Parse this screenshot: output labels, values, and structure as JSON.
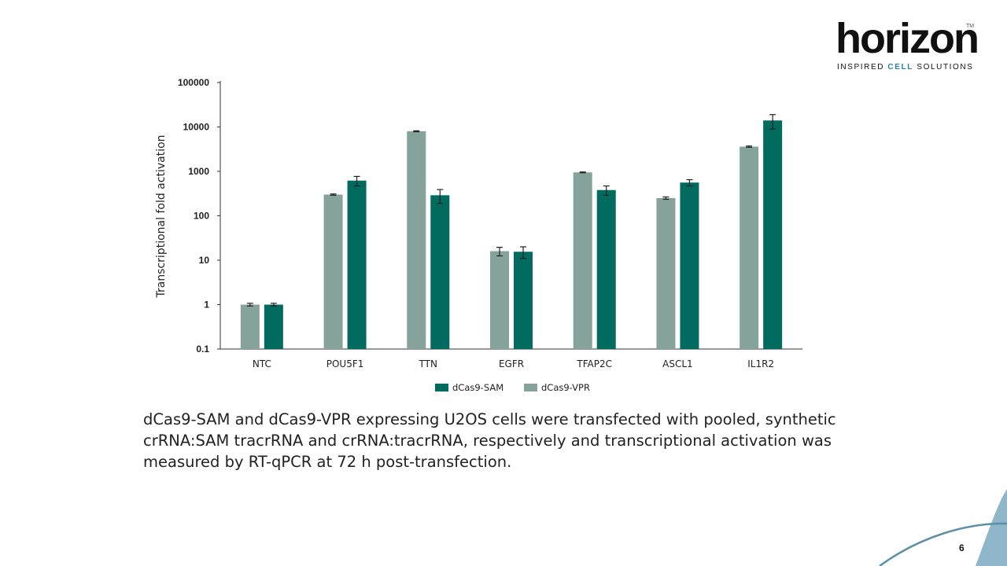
{
  "logo": {
    "word": "horizon",
    "trademark": "TM",
    "tagline_pre": "INSPIRED ",
    "tagline_accent": "CELL",
    "tagline_post": " SOLUTIONS"
  },
  "caption": "dCas9-SAM  and dCas9-VPR expressing U2OS cells were transfected with pooled, synthetic crRNA:SAM tracrRNA and crRNA:tracrRNA, respectively and transcriptional activation was measured by RT-qPCR at 72 h post-transfection.",
  "page_number": "6",
  "colors": {
    "sam": "#006b5e",
    "vpr": "#85a39b",
    "accent": "#2d7fa8"
  },
  "chart_data": {
    "type": "bar",
    "ylabel": "Transcriptional fold activation",
    "yscale": "log",
    "ylim": [
      0.1,
      100000
    ],
    "yticks": [
      "0.1",
      "1",
      "10",
      "100",
      "1000",
      "10000",
      "100000"
    ],
    "categories": [
      "NTC",
      "POU5F1",
      "TTN",
      "EGFR",
      "TFAP2C",
      "ASCL1",
      "IL1R2"
    ],
    "series": [
      {
        "name": "dCas9-VPR",
        "color": "#85a39b",
        "values": [
          1,
          300,
          8000,
          16,
          950,
          250,
          3600
        ],
        "error": [
          0.07,
          10,
          200,
          3.5,
          20,
          15,
          120
        ]
      },
      {
        "name": "dCas9-SAM",
        "color": "#006b5e",
        "values": [
          1,
          620,
          290,
          15.5,
          380,
          560,
          14000
        ],
        "error": [
          0.07,
          150,
          100,
          4.5,
          90,
          90,
          5000
        ]
      }
    ],
    "legend": [
      "dCas9-SAM",
      "dCas9-VPR"
    ],
    "legend_position": "bottom",
    "grid": false
  }
}
